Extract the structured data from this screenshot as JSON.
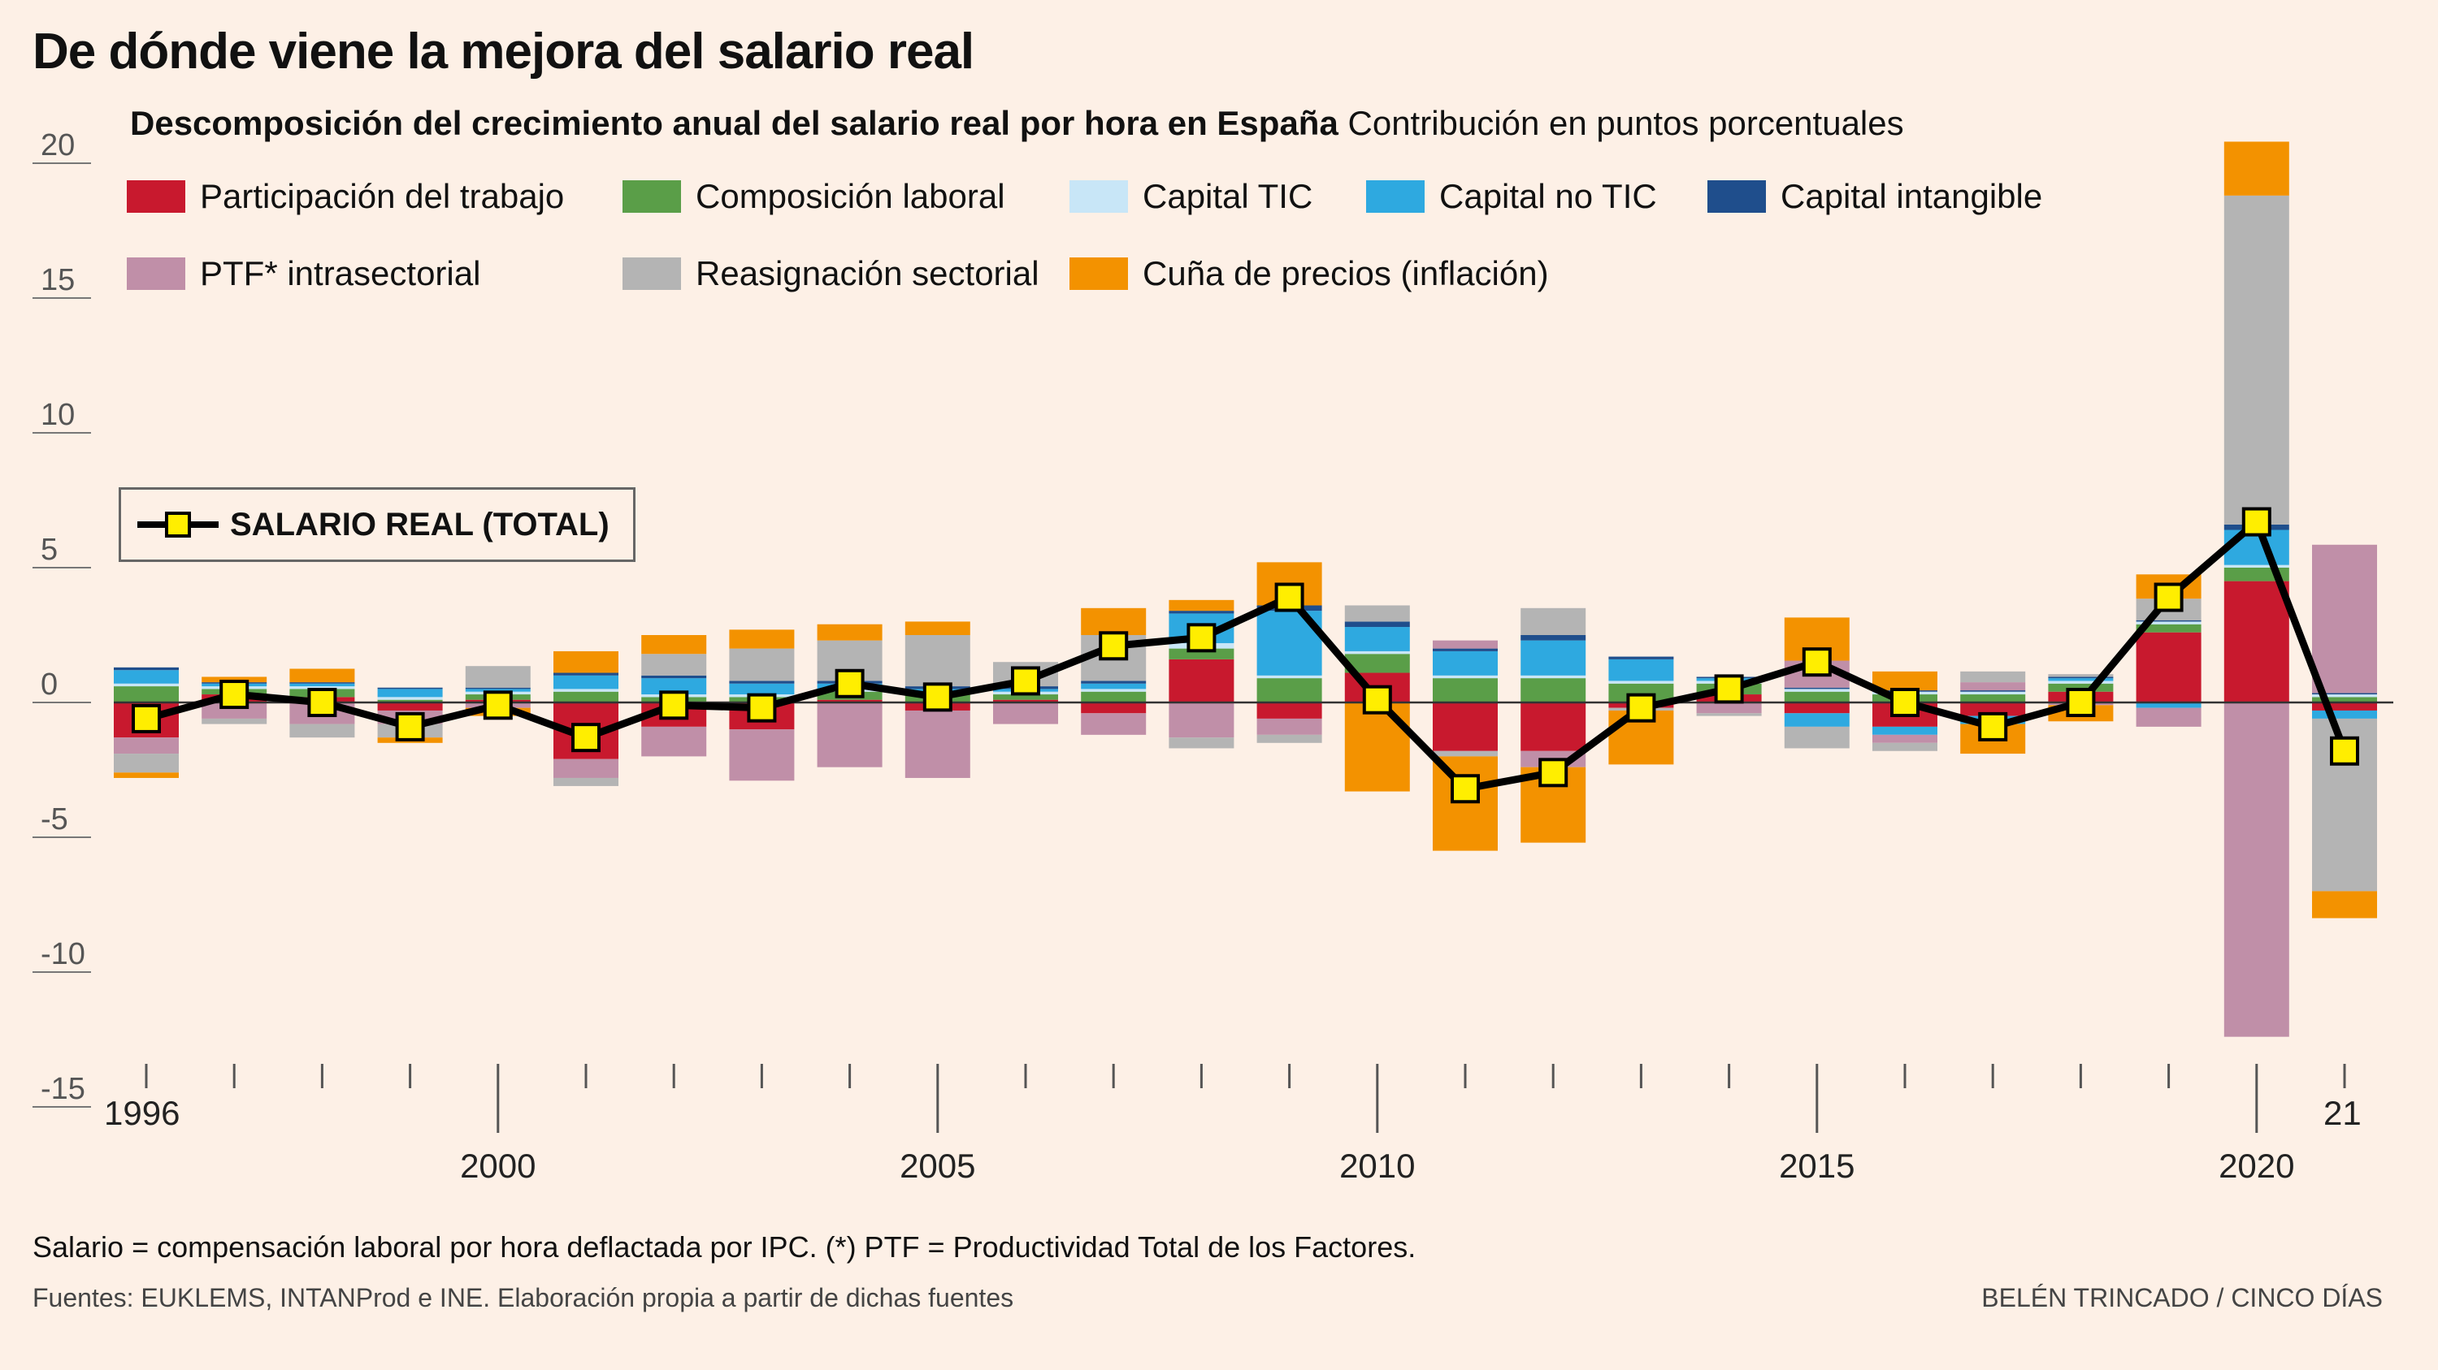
{
  "header": {
    "title": "De dónde viene la mejora del salario real",
    "subtitle_bold": "Descomposición del crecimiento anual del salario real por hora en España",
    "subtitle_rest": "Contribución en puntos porcentuales"
  },
  "footer": {
    "note": "Salario = compensación laboral por hora deflactada por IPC. (*) PTF = Productividad Total de los Factores.",
    "sources": "Fuentes: EUKLEMS, INTANProd e INE. Elaboración propia a partir de dichas fuentes",
    "credit": "BELÉN TRINCADO / CINCO DÍAS"
  },
  "line_legend_label": "SALARIO REAL (TOTAL)",
  "colors": {
    "participacion": "#c8192e",
    "composicion": "#5a9e48",
    "capital_tic": "#c8e6f7",
    "capital_no_tic": "#2ea9e0",
    "capital_intangible": "#1f4e8c",
    "ptf": "#c08fa8",
    "reasignacion": "#b4b4b4",
    "cuna": "#f39200",
    "marker": "#ffee00",
    "line": "#000000"
  },
  "chart_data": {
    "type": "bar",
    "stacked": true,
    "ylim": [
      -15,
      20
    ],
    "yticks": [
      "20",
      "15",
      "10",
      "5",
      "0",
      "-5",
      "-10",
      "-15"
    ],
    "x": [
      1996,
      1997,
      1998,
      1999,
      2000,
      2001,
      2002,
      2003,
      2004,
      2005,
      2006,
      2007,
      2008,
      2009,
      2010,
      2011,
      2012,
      2013,
      2014,
      2015,
      2016,
      2017,
      2018,
      2019,
      2020,
      2021
    ],
    "xlabels_top": [
      {
        "year": 1996,
        "label": "1996"
      },
      {
        "year": 2021,
        "label": "21"
      }
    ],
    "xlabels_bottom": [
      {
        "year": 2000,
        "label": "2000"
      },
      {
        "year": 2005,
        "label": "2005"
      },
      {
        "year": 2010,
        "label": "2010"
      },
      {
        "year": 2015,
        "label": "2015"
      },
      {
        "year": 2020,
        "label": "2020"
      }
    ],
    "series": [
      {
        "name": "Participación del trabajo",
        "key": "participacion",
        "values": [
          -1.3,
          0.3,
          0.2,
          -0.3,
          0.1,
          -2.1,
          -0.9,
          -1.0,
          0.1,
          -0.3,
          0.1,
          -0.4,
          1.6,
          -0.6,
          1.1,
          -1.8,
          -1.8,
          -0.2,
          0.3,
          -0.4,
          -0.9,
          -0.5,
          0.4,
          2.6,
          4.5,
          -0.3
        ]
      },
      {
        "name": "Composición laboral",
        "key": "composicion",
        "values": [
          0.6,
          0.2,
          0.3,
          0.1,
          0.2,
          0.4,
          0.2,
          0.2,
          0.3,
          0.3,
          0.2,
          0.4,
          0.4,
          0.9,
          0.7,
          0.9,
          0.9,
          0.7,
          0.4,
          0.4,
          0.3,
          0.3,
          0.3,
          0.3,
          0.5,
          0.2
        ]
      },
      {
        "name": "Capital TIC",
        "key": "capital_tic",
        "values": [
          0.1,
          0.1,
          0.1,
          0.1,
          0.1,
          0.1,
          0.1,
          0.1,
          0.1,
          0.1,
          0.1,
          0.1,
          0.2,
          0.1,
          0.1,
          0.1,
          0.1,
          0.1,
          0.1,
          0.1,
          0.1,
          0.1,
          0.1,
          0.1,
          0.1,
          0.1
        ]
      },
      {
        "name": "Capital no TIC",
        "key": "capital_no_tic",
        "values": [
          0.5,
          0.1,
          0.1,
          0.3,
          0.1,
          0.5,
          0.6,
          0.4,
          0.2,
          0.1,
          0.1,
          0.2,
          1.1,
          2.4,
          0.9,
          0.9,
          1.3,
          0.8,
          0.1,
          -0.5,
          -0.3,
          -0.3,
          0.1,
          -0.2,
          1.3,
          -0.3
        ]
      },
      {
        "name": "Capital intangible",
        "key": "capital_intangible",
        "values": [
          0.1,
          0.05,
          0.05,
          0.05,
          0.05,
          0.1,
          0.1,
          0.1,
          0.1,
          0.1,
          0.1,
          0.1,
          0.1,
          0.2,
          0.2,
          0.1,
          0.2,
          0.1,
          0.05,
          0.05,
          0.05,
          0.05,
          0.05,
          0.05,
          0.2,
          0.05
        ]
      },
      {
        "name": "PTF* intrasectorial",
        "key": "ptf",
        "values": [
          -0.6,
          -0.6,
          -0.8,
          -0.5,
          -0.2,
          -0.7,
          -1.1,
          -1.9,
          -2.4,
          -2.5,
          -0.8,
          -0.8,
          -1.3,
          -0.6,
          0.0,
          0.3,
          -0.6,
          0.0,
          -0.4,
          1.0,
          -0.3,
          0.3,
          -0.1,
          -0.7,
          -12.4,
          5.5
        ]
      },
      {
        "name": "Reasignación sectorial",
        "key": "reasignacion",
        "values": [
          -0.7,
          -0.2,
          -0.5,
          -0.5,
          0.8,
          -0.3,
          0.8,
          1.2,
          1.5,
          1.9,
          0.9,
          1.7,
          -0.4,
          -0.3,
          0.6,
          -0.2,
          1.0,
          -0.1,
          -0.1,
          -0.8,
          -0.3,
          0.4,
          0.1,
          0.8,
          12.2,
          -6.4
        ]
      },
      {
        "name": "Cuña de precios (inflación)",
        "key": "cuna",
        "values": [
          -0.2,
          0.2,
          0.5,
          -0.2,
          -0.3,
          0.8,
          0.7,
          0.7,
          0.6,
          0.5,
          0.0,
          1.0,
          0.4,
          1.6,
          -3.3,
          -3.5,
          -2.8,
          -2.0,
          0.0,
          1.6,
          0.7,
          -1.1,
          -0.6,
          0.9,
          2.0,
          -1.0
        ]
      }
    ],
    "total": {
      "name": "SALARIO REAL (TOTAL)",
      "values": [
        -0.6,
        0.3,
        0.0,
        -0.9,
        -0.1,
        -1.3,
        -0.1,
        -0.2,
        0.7,
        0.2,
        0.8,
        2.1,
        2.4,
        3.9,
        0.1,
        -3.2,
        -2.6,
        -0.2,
        0.5,
        1.5,
        0.0,
        -0.9,
        0.0,
        3.9,
        6.7,
        -1.8
      ]
    }
  }
}
